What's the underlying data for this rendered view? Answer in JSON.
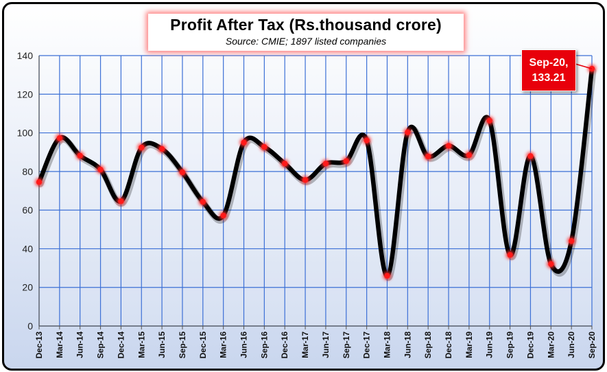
{
  "chart_data": {
    "type": "line",
    "title": "Profit After Tax (Rs.thousand crore)",
    "subtitle": "Source: CMIE; 1897 listed companies",
    "xlabel": "",
    "ylabel": "",
    "ylim": [
      0,
      140
    ],
    "yticks": [
      0,
      20,
      40,
      60,
      80,
      100,
      120,
      140
    ],
    "grid": true,
    "categories": [
      "Dec-13",
      "Mar-14",
      "Jun-14",
      "Sep-14",
      "Dec-14",
      "Mar-15",
      "Jun-15",
      "Sep-15",
      "Dec-15",
      "Mar-16",
      "Jun-16",
      "Sep-16",
      "Dec-16",
      "Mar-17",
      "Jun-17",
      "Sep-17",
      "Dec-17",
      "Mar-18",
      "Jun-18",
      "Sep-18",
      "Dec-18",
      "Mar-19",
      "Jun-19",
      "Sep-19",
      "Dec-19",
      "Mar-20",
      "Jun-20",
      "Sep-20"
    ],
    "series": [
      {
        "name": "Profit After Tax",
        "values": [
          74.5,
          97.3,
          88.2,
          81.0,
          64.6,
          92.4,
          91.7,
          79.6,
          64.3,
          57.2,
          95.0,
          92.7,
          84.1,
          75.6,
          84.1,
          85.4,
          96.1,
          26.0,
          100.3,
          87.8,
          93.3,
          88.5,
          106.3,
          36.8,
          88.0,
          32.1,
          44.0,
          133.21
        ]
      }
    ],
    "annotation": {
      "label_line1": "Sep-20,",
      "label_line2": "133.21"
    }
  }
}
